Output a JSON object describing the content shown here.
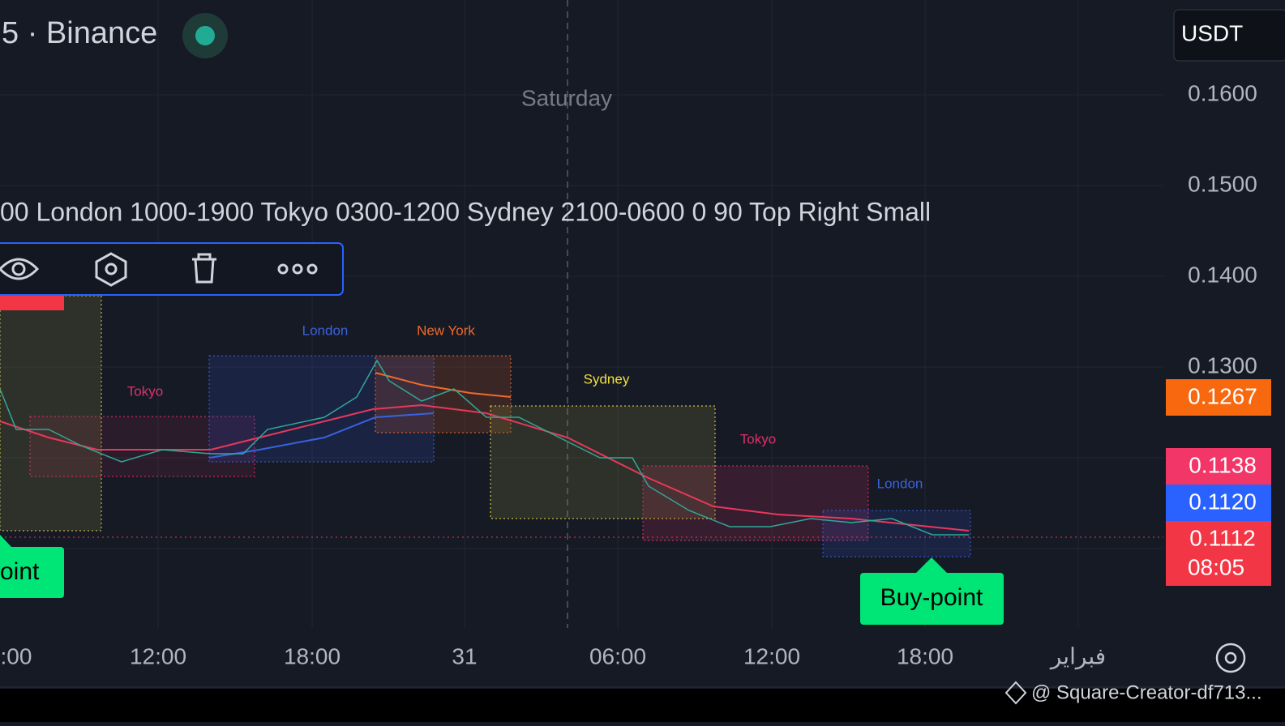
{
  "header": {
    "symbol": "5 · Binance",
    "currency": "USDT"
  },
  "day_label": "Saturday",
  "indicator_text": "00 London 1000-1900 Tokyo 0300-1200 Sydney 2100-0600 0 90 Top Right Small",
  "price_axis": [
    "0.1600",
    "0.1500",
    "0.1400",
    "0.1300"
  ],
  "price_badges": [
    {
      "price": "0.1267"
    },
    {
      "price": "0.1138"
    },
    {
      "price": "0.1120"
    },
    {
      "price": "0.1112",
      "countdown": "08:05"
    }
  ],
  "time_axis": [
    ":00",
    "12:00",
    "18:00",
    "31",
    "06:00",
    "12:00",
    "18:00",
    "فبراير"
  ],
  "sessions": [
    "Tokyo",
    "London",
    "New York",
    "Sydney",
    "Tokyo",
    "London"
  ],
  "signals": [
    "oint",
    "Buy-point"
  ],
  "watermark": "@ Square-Creator-df713..."
}
